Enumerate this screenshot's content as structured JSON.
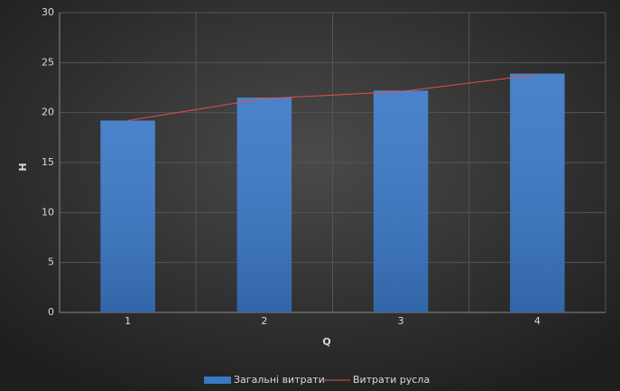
{
  "chart_data": {
    "type": "bar",
    "x_label": "Q",
    "y_label": "H",
    "categories": [
      "1",
      "2",
      "3",
      "4"
    ],
    "series": [
      {
        "name": "Загальні витрати",
        "type": "bar",
        "color": "#3a78c6",
        "values": [
          19.2,
          21.5,
          22.2,
          23.9
        ]
      },
      {
        "name": "Витрати русла",
        "type": "line",
        "color": "#e05050",
        "values": [
          19.2,
          21.4,
          22.1,
          23.8
        ]
      }
    ],
    "ylim": [
      0,
      30
    ],
    "yticks": [
      0,
      5,
      10,
      15,
      20,
      25,
      30
    ],
    "grid": true
  }
}
